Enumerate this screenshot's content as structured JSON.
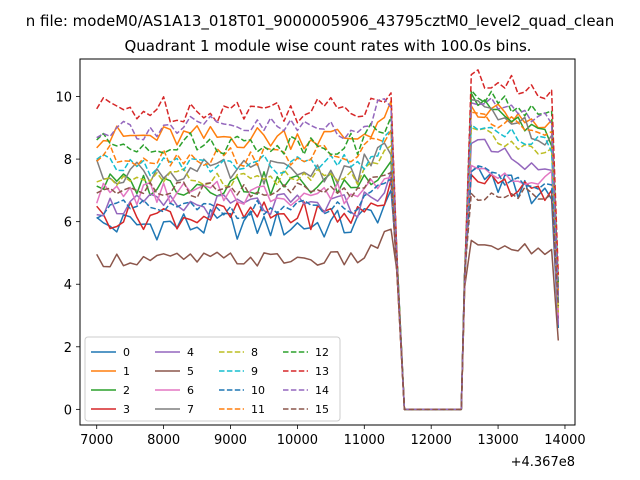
{
  "suptitle": "n file: modeM0/AS1A13_018T01_9000005906_43795cztM0_level2_quad_clean",
  "chart_data": {
    "type": "line",
    "title": "Quadrant 1 module wise count rates with 100.0s bins.",
    "xlabel": "",
    "ylabel": "",
    "offset_label": "+4.367e8",
    "xlim": [
      6750,
      14150
    ],
    "ylim": [
      -0.5,
      11.2
    ],
    "xticks": [
      7000,
      8000,
      9000,
      10000,
      11000,
      12000,
      13000,
      14000
    ],
    "yticks": [
      0,
      2,
      4,
      6,
      8,
      10
    ],
    "gap": [
      11700,
      12400
    ],
    "segment1_x": [
      7000,
      7100,
      7200,
      7300,
      7400,
      7500,
      7600,
      7700,
      7800,
      7900,
      8000,
      8100,
      8200,
      8300,
      8400,
      8500,
      8600,
      8700,
      8800,
      8900,
      9000,
      9100,
      9200,
      9300,
      9400,
      9500,
      9600,
      9700,
      9800,
      9900,
      10000,
      10100,
      10200,
      10300,
      10400,
      10500,
      10600,
      10700,
      10800,
      10900,
      11000,
      11100,
      11200,
      11300,
      11400
    ],
    "segment2_x": [
      12600,
      12700,
      12800,
      12900,
      13000,
      13100,
      13200,
      13300,
      13400,
      13500,
      13600,
      13700,
      13800
    ],
    "drop": {
      "x_after": 11500,
      "y_after": 4.4,
      "x_zero_start": 11600,
      "x_zero_end": 12450,
      "y_before_rise": 4.3,
      "x_before_rise": 12500,
      "x_end": 13900
    },
    "series": [
      {
        "name": "0",
        "dash": false,
        "color": "#1f77b4",
        "base": 5.9,
        "amp": 0.5,
        "peak2": 7.6,
        "end": 2.6
      },
      {
        "name": "1",
        "dash": false,
        "color": "#ff7f0e",
        "base": 8.7,
        "amp": 0.4,
        "peak2": 9.7,
        "end": 3.0
      },
      {
        "name": "2",
        "dash": false,
        "color": "#2ca02c",
        "base": 7.2,
        "amp": 0.4,
        "peak2": 10.1,
        "end": 3.9
      },
      {
        "name": "3",
        "dash": false,
        "color": "#d62728",
        "base": 6.2,
        "amp": 0.45,
        "peak2": 7.5,
        "end": 2.9
      },
      {
        "name": "4",
        "dash": false,
        "color": "#9467bd",
        "base": 6.5,
        "amp": 0.4,
        "peak2": 8.5,
        "end": 2.7
      },
      {
        "name": "5",
        "dash": false,
        "color": "#8c564b",
        "base": 4.8,
        "amp": 0.25,
        "peak2": 5.4,
        "end": 2.2
      },
      {
        "name": "6",
        "dash": false,
        "color": "#e377c2",
        "base": 6.9,
        "amp": 0.4,
        "peak2": 7.8,
        "end": 3.0
      },
      {
        "name": "7",
        "dash": false,
        "color": "#7f7f7f",
        "base": 7.6,
        "amp": 0.4,
        "peak2": 9.9,
        "end": 3.4
      },
      {
        "name": "8",
        "dash": true,
        "color": "#bcbd22",
        "base": 7.4,
        "amp": 0.3,
        "peak2": 9.0,
        "end": 3.1
      },
      {
        "name": "9",
        "dash": true,
        "color": "#17becf",
        "base": 7.8,
        "amp": 0.35,
        "peak2": 9.1,
        "end": 3.5
      },
      {
        "name": "10",
        "dash": true,
        "color": "#1f77b4",
        "base": 6.4,
        "amp": 0.3,
        "peak2": 7.6,
        "end": 3.6
      },
      {
        "name": "11",
        "dash": true,
        "color": "#ff7f0e",
        "base": 8.1,
        "amp": 0.35,
        "peak2": 9.5,
        "end": 3.8
      },
      {
        "name": "12",
        "dash": true,
        "color": "#2ca02c",
        "base": 8.5,
        "amp": 0.35,
        "peak2": 10.2,
        "end": 4.0
      },
      {
        "name": "13",
        "dash": true,
        "color": "#d62728",
        "base": 9.6,
        "amp": 0.45,
        "peak2": 10.7,
        "end": 4.3
      },
      {
        "name": "14",
        "dash": true,
        "color": "#9467bd",
        "base": 9.0,
        "amp": 0.4,
        "peak2": 9.8,
        "end": 3.6
      },
      {
        "name": "15",
        "dash": true,
        "color": "#8c564b",
        "base": 7.0,
        "amp": 0.3,
        "peak2": 6.9,
        "end": 3.3
      }
    ],
    "legend_location": "lower-left"
  }
}
